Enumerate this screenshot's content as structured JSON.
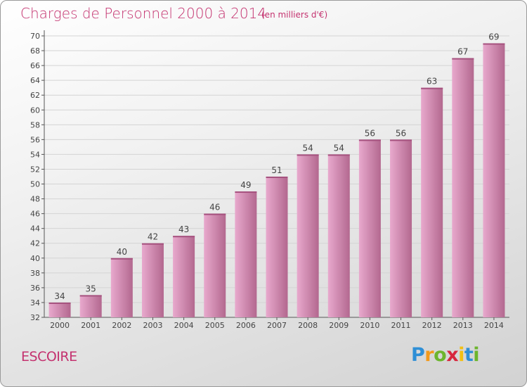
{
  "header": {
    "title": "Charges de Personnel 2000 à 2014",
    "unit": "(en milliers d'€)"
  },
  "footer": {
    "town": "ESCOIRE",
    "logo_letters": [
      "P",
      "r",
      "o",
      "x",
      "i",
      "t",
      "i"
    ],
    "logo_colors": [
      "#2f8fd6",
      "#f29a1c",
      "#6cb52d",
      "#d7263d",
      "#f2c014",
      "#2f8fd6",
      "#6cb52d"
    ]
  },
  "colors": {
    "title": "#c4326f",
    "bar_light": "#e8a9cd",
    "bar_dark": "#b3688f",
    "bar_top": "#a6527f"
  },
  "chart_data": {
    "type": "bar",
    "categories": [
      "2000",
      "2001",
      "2002",
      "2003",
      "2004",
      "2005",
      "2006",
      "2007",
      "2008",
      "2009",
      "2010",
      "2011",
      "2012",
      "2013",
      "2014"
    ],
    "values": [
      34,
      35,
      40,
      42,
      43,
      46,
      49,
      51,
      54,
      54,
      56,
      56,
      63,
      67,
      69
    ],
    "ylim": [
      32,
      70
    ],
    "yticks": [
      32,
      34,
      36,
      38,
      40,
      42,
      44,
      46,
      48,
      50,
      52,
      54,
      56,
      58,
      60,
      62,
      64,
      66,
      68,
      70
    ],
    "grid": true
  }
}
